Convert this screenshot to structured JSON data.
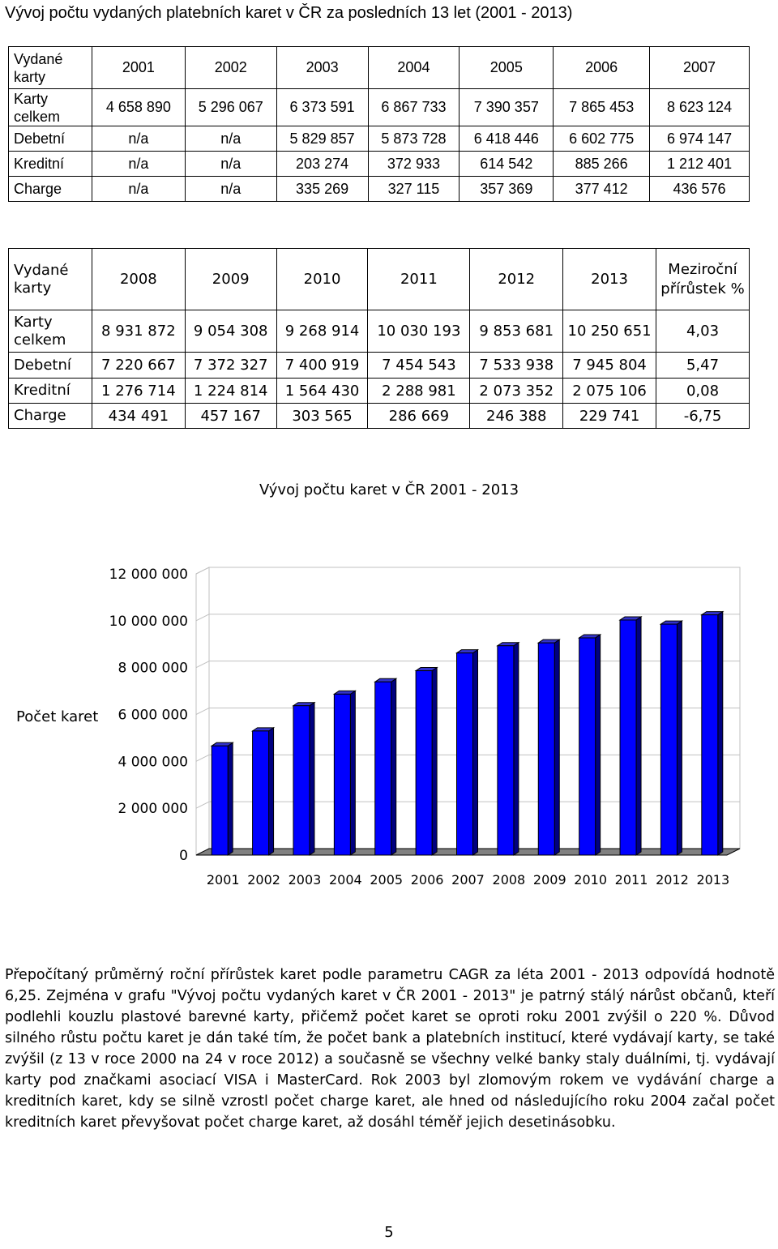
{
  "title": "Vývoj počtu vydaných platebních karet v ČR za posledních 13 let (2001 - 2013)",
  "table1": {
    "header_label": "Vydané karty",
    "years": [
      "2001",
      "2002",
      "2003",
      "2004",
      "2005",
      "2006",
      "2007"
    ],
    "rows": [
      {
        "label": "Karty celkem",
        "values": [
          "4 658 890",
          "5 296 067",
          "6 373 591",
          "6 867 733",
          "7 390 357",
          "7 865 453",
          "8 623 124"
        ]
      },
      {
        "label": "Debetní",
        "values": [
          "n/a",
          "n/a",
          "5 829 857",
          "5 873 728",
          "6 418 446",
          "6 602 775",
          "6 974 147"
        ]
      },
      {
        "label": "Kreditní",
        "values": [
          "n/a",
          "n/a",
          "203 274",
          "372 933",
          "614 542",
          "885 266",
          "1 212 401"
        ]
      },
      {
        "label": "Charge",
        "values": [
          "n/a",
          "n/a",
          "335 269",
          "327 115",
          "357 369",
          "377 412",
          "436 576"
        ]
      }
    ]
  },
  "table2": {
    "header_label": "Vydané karty",
    "years": [
      "2008",
      "2009",
      "2010",
      "2011",
      "2012",
      "2013"
    ],
    "growth_label": "Meziroční přírůstek %",
    "rows": [
      {
        "label": "Karty celkem",
        "values": [
          "8 931 872",
          "9 054 308",
          "9 268 914",
          "10 030 193",
          "9 853 681",
          "10 250 651",
          "4,03"
        ]
      },
      {
        "label": "Debetní",
        "values": [
          "7 220 667",
          "7 372 327",
          "7 400 919",
          "7 454 543",
          "7 533 938",
          "7 945 804",
          "5,47"
        ]
      },
      {
        "label": "Kreditní",
        "values": [
          "1 276 714",
          "1 224 814",
          "1 564 430",
          "2 288 981",
          "2 073 352",
          "2 075 106",
          "0,08"
        ]
      },
      {
        "label": "Charge",
        "values": [
          "434 491",
          "457 167",
          "303 565",
          "286 669",
          "246 388",
          "229 741",
          "-6,75"
        ]
      }
    ]
  },
  "chart_data": {
    "type": "bar",
    "title": "Vývoj počtu karet v ČR 2001 - 2013",
    "ylabel": "Počet karet",
    "xlabel": "",
    "categories": [
      "2001",
      "2002",
      "2003",
      "2004",
      "2005",
      "2006",
      "2007",
      "2008",
      "2009",
      "2010",
      "2011",
      "2012",
      "2013"
    ],
    "values": [
      4658890,
      5296067,
      6373591,
      6867733,
      7390357,
      7865453,
      8623124,
      8931872,
      9054308,
      9268914,
      10030193,
      9853681,
      10250651
    ],
    "yticks": [
      "0",
      "2 000 000",
      "4 000 000",
      "6 000 000",
      "8 000 000",
      "10 000 000",
      "12 000 000"
    ],
    "ylim": [
      0,
      12000000
    ],
    "grid": true,
    "bar_color": "#0000ff",
    "legend": "none"
  },
  "paragraph": "Přepočítaný průměrný roční přírůstek karet podle parametru CAGR za léta 2001 - 2013 odpovídá hodnotě 6,25. Zejména v grafu \"Vývoj počtu vydaných karet v ČR 2001 - 2013\" je patrný stálý nárůst občanů, kteří podlehli kouzlu plastové barevné karty, přičemž počet karet se oproti roku 2001 zvýšil o 220 %. Důvod silného růstu počtu karet je dán také tím, že počet bank a platebních institucí, které vydávají karty, se také zvýšil (z 13 v roce 2000 na 24 v roce 2012) a současně se všechny velké banky staly duálními, tj. vydávají karty pod značkami asociací VISA i MasterCard. Rok 2003 byl zlomovým rokem ve vydávání charge a kreditních karet, kdy se silně vzrostl počet charge karet, ale hned od následujícího roku 2004 začal počet kreditních karet převyšovat počet charge karet, až dosáhl téměř jejich desetinásobku.",
  "page_number": "5"
}
